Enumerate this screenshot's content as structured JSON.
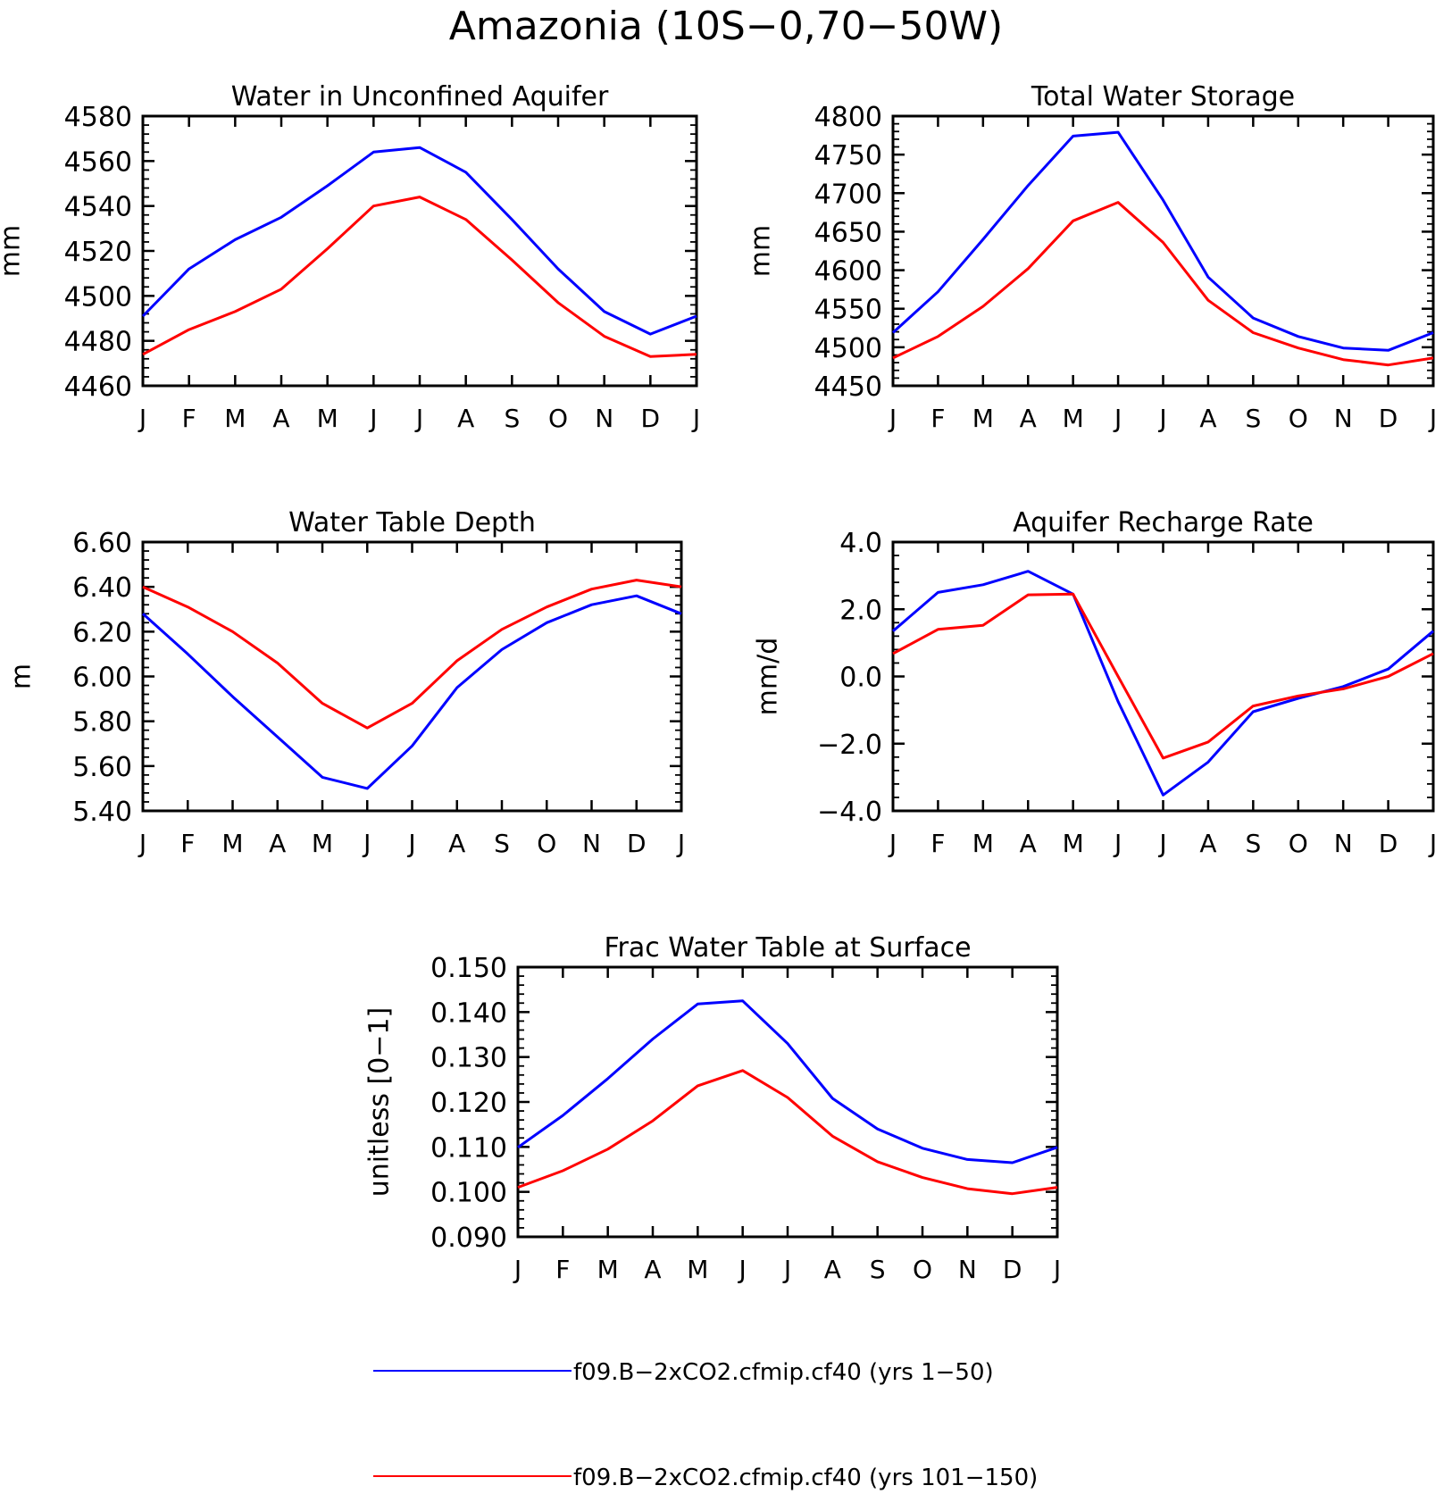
{
  "figure_title": "Amazonia (10S−0,70−50W)",
  "legend": [
    {
      "label": "f09.B−2xCO2.cfmip.cf40 (yrs 1−50)",
      "color": "#0000ff"
    },
    {
      "label": "f09.B−2xCO2.cfmip.cf40 (yrs 101−150)",
      "color": "#ff0000"
    }
  ],
  "chart_data": [
    {
      "type": "line",
      "title": "Water in Unconfined Aquifer",
      "ylabel": "mm",
      "categories": [
        "J",
        "F",
        "M",
        "A",
        "M",
        "J",
        "J",
        "A",
        "S",
        "O",
        "N",
        "D",
        "J"
      ],
      "ylim": [
        4460,
        4580
      ],
      "yticks": [
        "4460",
        "4480",
        "4500",
        "4520",
        "4540",
        "4560",
        "4580"
      ],
      "series": [
        {
          "name": "f09.B−2xCO2.cfmip.cf40 (yrs 1−50)",
          "color": "#0000ff",
          "values": [
            4491,
            4512,
            4525,
            4535,
            4549,
            4564,
            4566,
            4555,
            4534,
            4512,
            4493,
            4483,
            4491
          ]
        },
        {
          "name": "f09.B−2xCO2.cfmip.cf40 (yrs 101−150)",
          "color": "#ff0000",
          "values": [
            4474,
            4485,
            4493,
            4503,
            4521,
            4540,
            4544,
            4534,
            4516,
            4497,
            4482,
            4473,
            4474
          ]
        }
      ]
    },
    {
      "type": "line",
      "title": "Total Water Storage",
      "ylabel": "mm",
      "categories": [
        "J",
        "F",
        "M",
        "A",
        "M",
        "J",
        "J",
        "A",
        "S",
        "O",
        "N",
        "D",
        "J"
      ],
      "ylim": [
        4450,
        4800
      ],
      "yticks": [
        "4450",
        "4500",
        "4550",
        "4600",
        "4650",
        "4700",
        "4750",
        "4800"
      ],
      "series": [
        {
          "name": "f09.B−2xCO2.cfmip.cf40 (yrs 1−50)",
          "color": "#0000ff",
          "values": [
            4519,
            4572,
            4640,
            4710,
            4774,
            4779,
            4691,
            4591,
            4538,
            4514,
            4499,
            4496,
            4519
          ]
        },
        {
          "name": "f09.B−2xCO2.cfmip.cf40 (yrs 101−150)",
          "color": "#ff0000",
          "values": [
            4486,
            4514,
            4553,
            4602,
            4664,
            4688,
            4636,
            4561,
            4519,
            4499,
            4484,
            4477,
            4486
          ]
        }
      ]
    },
    {
      "type": "line",
      "title": "Water Table Depth",
      "ylabel": "m",
      "categories": [
        "J",
        "F",
        "M",
        "A",
        "M",
        "J",
        "J",
        "A",
        "S",
        "O",
        "N",
        "D",
        "J"
      ],
      "ylim": [
        5.4,
        6.6
      ],
      "yticks": [
        "5.40",
        "5.60",
        "5.80",
        "6.00",
        "6.20",
        "6.40",
        "6.60"
      ],
      "series": [
        {
          "name": "f09.B−2xCO2.cfmip.cf40 (yrs 1−50)",
          "color": "#0000ff",
          "values": [
            6.28,
            6.1,
            5.91,
            5.73,
            5.55,
            5.5,
            5.69,
            5.95,
            6.12,
            6.24,
            6.32,
            6.36,
            6.28
          ]
        },
        {
          "name": "f09.B−2xCO2.cfmip.cf40 (yrs 101−150)",
          "color": "#ff0000",
          "values": [
            6.4,
            6.31,
            6.2,
            6.06,
            5.88,
            5.77,
            5.88,
            6.07,
            6.21,
            6.31,
            6.39,
            6.43,
            6.4
          ]
        }
      ]
    },
    {
      "type": "line",
      "title": "Aquifer Recharge Rate",
      "ylabel": "mm/d",
      "categories": [
        "J",
        "F",
        "M",
        "A",
        "M",
        "J",
        "J",
        "A",
        "S",
        "O",
        "N",
        "D",
        "J"
      ],
      "ylim": [
        -4.0,
        4.0
      ],
      "yticks": [
        "−4.0",
        "−2.0",
        "0.0",
        "2.0",
        "4.0"
      ],
      "series": [
        {
          "name": "f09.B−2xCO2.cfmip.cf40 (yrs 1−50)",
          "color": "#0000ff",
          "values": [
            1.35,
            2.5,
            2.73,
            3.13,
            2.45,
            -0.75,
            -3.53,
            -2.55,
            -1.05,
            -0.65,
            -0.3,
            0.22,
            1.35
          ]
        },
        {
          "name": "f09.B−2xCO2.cfmip.cf40 (yrs 101−150)",
          "color": "#ff0000",
          "values": [
            0.68,
            1.4,
            1.52,
            2.43,
            2.45,
            0.0,
            -2.43,
            -1.95,
            -0.88,
            -0.58,
            -0.37,
            0.0,
            0.68
          ]
        }
      ]
    },
    {
      "type": "line",
      "title": "Frac Water Table at Surface",
      "ylabel": "unitless [0−1]",
      "categories": [
        "J",
        "F",
        "M",
        "A",
        "M",
        "J",
        "J",
        "A",
        "S",
        "O",
        "N",
        "D",
        "J"
      ],
      "ylim": [
        0.09,
        0.15
      ],
      "yticks": [
        "0.090",
        "0.100",
        "0.110",
        "0.120",
        "0.130",
        "0.140",
        "0.150"
      ],
      "series": [
        {
          "name": "f09.B−2xCO2.cfmip.cf40 (yrs 1−50)",
          "color": "#0000ff",
          "values": [
            0.1099,
            0.117,
            0.1252,
            0.134,
            0.1418,
            0.1425,
            0.133,
            0.1208,
            0.114,
            0.1097,
            0.1072,
            0.1065,
            0.1099
          ]
        },
        {
          "name": "f09.B−2xCO2.cfmip.cf40 (yrs 101−150)",
          "color": "#ff0000",
          "values": [
            0.101,
            0.1047,
            0.1095,
            0.1158,
            0.1236,
            0.127,
            0.121,
            0.1124,
            0.1067,
            0.1032,
            0.1007,
            0.0996,
            0.101
          ]
        }
      ]
    }
  ]
}
